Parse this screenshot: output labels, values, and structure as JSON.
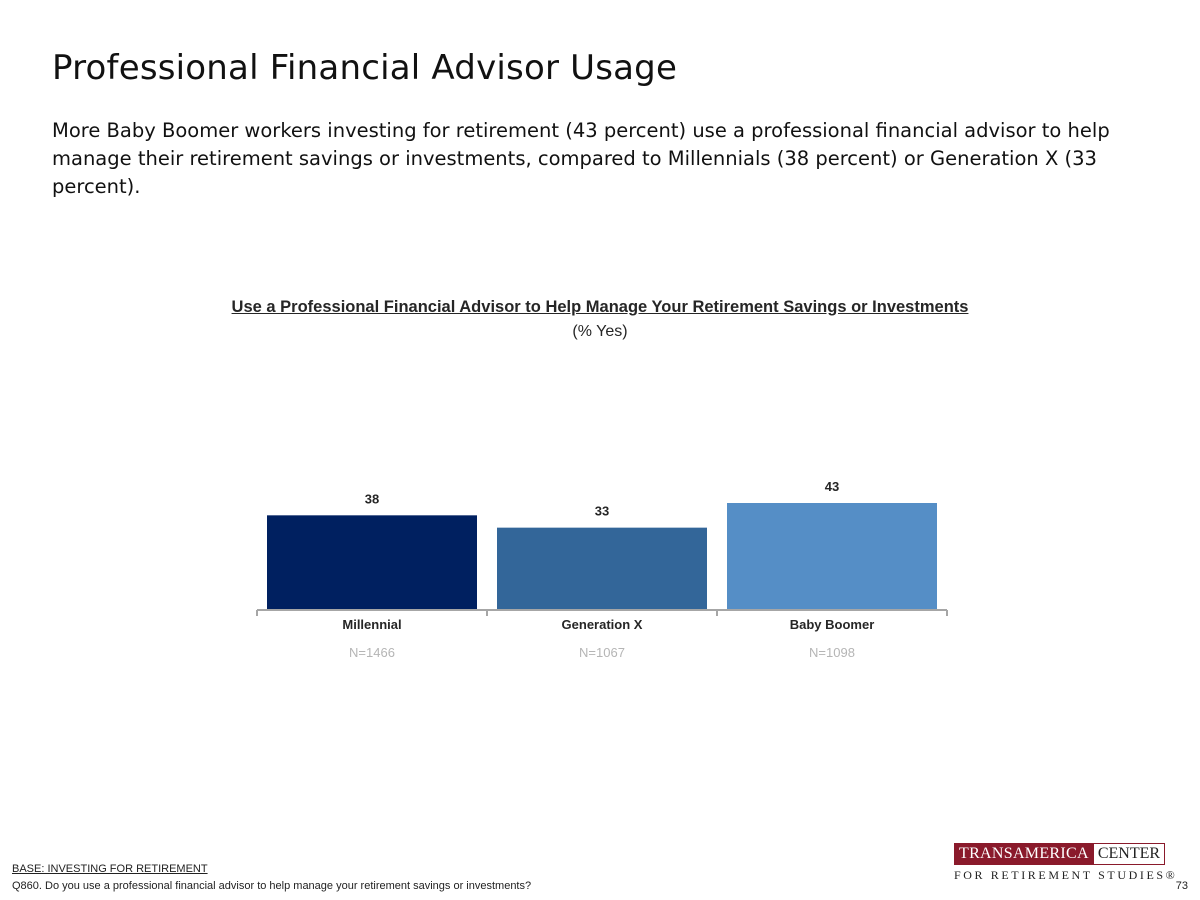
{
  "slide": {
    "title": "Professional Financial Advisor Usage",
    "lead": "More Baby Boomer workers investing for retirement (43 percent) use a professional financial advisor to help manage their retirement savings or investments, compared to Millennials (38 percent) or Generation X (33 percent)."
  },
  "chart_data": {
    "type": "bar",
    "title": "Use a Professional Financial Advisor to Help Manage Your Retirement Savings or Investments",
    "subtitle": "(% Yes)",
    "categories": [
      "Millennial",
      "Generation X",
      "Baby Boomer"
    ],
    "sample_sizes": [
      "N=1466",
      "N=1067",
      "N=1098"
    ],
    "values": [
      38,
      33,
      43
    ],
    "colors": [
      "#002060",
      "#336699",
      "#558ec6"
    ],
    "ylim": [
      0,
      43
    ],
    "grid": false,
    "legend": "none"
  },
  "footer": {
    "base": "BASE: INVESTING FOR RETIREMENT",
    "question": "Q860. Do you use a professional financial advisor to help manage your retirement savings or investments?",
    "page_number": "73"
  },
  "logo": {
    "left": "TRANSAMERICA",
    "right": "CENTER",
    "bottom": "FOR RETIREMENT STUDIES®"
  }
}
